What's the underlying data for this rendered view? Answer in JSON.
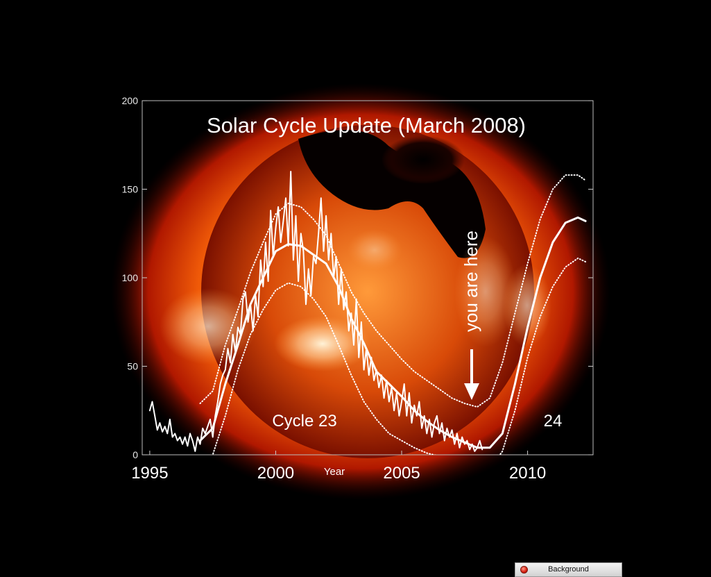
{
  "chart_data": {
    "type": "line",
    "title": "Solar Cycle Update (March 2008)",
    "xlabel": "Year",
    "ylabel": "",
    "xlim": [
      1995,
      2012.5
    ],
    "ylim": [
      0,
      200
    ],
    "x_ticks": [
      1995,
      2000,
      2005,
      2010
    ],
    "y_ticks": [
      0,
      50,
      100,
      150,
      200
    ],
    "annotations": {
      "you_are_here": "you are here",
      "cycle23": "Cycle 23",
      "cycle24": "24"
    },
    "series": [
      {
        "style": "monthly",
        "points": [
          [
            1995.0,
            25
          ],
          [
            1995.1,
            30
          ],
          [
            1995.2,
            22
          ],
          [
            1995.3,
            14
          ],
          [
            1995.4,
            18
          ],
          [
            1995.5,
            13
          ],
          [
            1995.6,
            16
          ],
          [
            1995.7,
            12
          ],
          [
            1995.8,
            20
          ],
          [
            1995.9,
            10
          ],
          [
            1996.0,
            12
          ],
          [
            1996.1,
            8
          ],
          [
            1996.2,
            10
          ],
          [
            1996.3,
            6
          ],
          [
            1996.4,
            10
          ],
          [
            1996.5,
            5
          ],
          [
            1996.6,
            12
          ],
          [
            1996.7,
            8
          ],
          [
            1996.8,
            2
          ],
          [
            1996.9,
            10
          ],
          [
            1997.0,
            6
          ],
          [
            1997.1,
            15
          ],
          [
            1997.2,
            12
          ],
          [
            1997.3,
            16
          ],
          [
            1997.4,
            20
          ],
          [
            1997.5,
            10
          ],
          [
            1997.6,
            22
          ],
          [
            1997.7,
            30
          ],
          [
            1997.8,
            40
          ],
          [
            1997.9,
            45
          ],
          [
            1998.0,
            48
          ],
          [
            1998.1,
            60
          ],
          [
            1998.2,
            52
          ],
          [
            1998.3,
            68
          ],
          [
            1998.4,
            58
          ],
          [
            1998.5,
            72
          ],
          [
            1998.6,
            68
          ],
          [
            1998.7,
            88
          ],
          [
            1998.8,
            92
          ],
          [
            1998.9,
            75
          ],
          [
            1999.0,
            85
          ],
          [
            1999.1,
            70
          ],
          [
            1999.2,
            90
          ],
          [
            1999.3,
            78
          ],
          [
            1999.4,
            110
          ],
          [
            1999.5,
            95
          ],
          [
            1999.6,
            120
          ],
          [
            1999.7,
            98
          ],
          [
            1999.8,
            138
          ],
          [
            1999.9,
            112
          ],
          [
            2000.0,
            128
          ],
          [
            2000.1,
            140
          ],
          [
            2000.2,
            120
          ],
          [
            2000.3,
            132
          ],
          [
            2000.4,
            145
          ],
          [
            2000.5,
            118
          ],
          [
            2000.6,
            160
          ],
          [
            2000.7,
            110
          ],
          [
            2000.8,
            135
          ],
          [
            2000.9,
            98
          ],
          [
            2001.0,
            125
          ],
          [
            2001.1,
            115
          ],
          [
            2001.2,
            85
          ],
          [
            2001.3,
            105
          ],
          [
            2001.4,
            90
          ],
          [
            2001.5,
            112
          ],
          [
            2001.6,
            108
          ],
          [
            2001.7,
            125
          ],
          [
            2001.8,
            145
          ],
          [
            2001.9,
            115
          ],
          [
            2002.0,
            135
          ],
          [
            2002.1,
            110
          ],
          [
            2002.2,
            125
          ],
          [
            2002.3,
            100
          ],
          [
            2002.4,
            112
          ],
          [
            2002.5,
            85
          ],
          [
            2002.6,
            105
          ],
          [
            2002.7,
            82
          ],
          [
            2002.8,
            92
          ],
          [
            2002.9,
            70
          ],
          [
            2003.0,
            80
          ],
          [
            2003.1,
            62
          ],
          [
            2003.2,
            88
          ],
          [
            2003.3,
            55
          ],
          [
            2003.4,
            75
          ],
          [
            2003.5,
            48
          ],
          [
            2003.6,
            60
          ],
          [
            2003.7,
            45
          ],
          [
            2003.8,
            55
          ],
          [
            2003.9,
            42
          ],
          [
            2004.0,
            48
          ],
          [
            2004.1,
            38
          ],
          [
            2004.2,
            45
          ],
          [
            2004.3,
            32
          ],
          [
            2004.4,
            42
          ],
          [
            2004.5,
            30
          ],
          [
            2004.6,
            38
          ],
          [
            2004.7,
            25
          ],
          [
            2004.8,
            35
          ],
          [
            2004.9,
            22
          ],
          [
            2005.0,
            30
          ],
          [
            2005.1,
            40
          ],
          [
            2005.2,
            22
          ],
          [
            2005.3,
            35
          ],
          [
            2005.4,
            18
          ],
          [
            2005.5,
            28
          ],
          [
            2005.6,
            22
          ],
          [
            2005.7,
            30
          ],
          [
            2005.8,
            15
          ],
          [
            2005.9,
            22
          ],
          [
            2006.0,
            12
          ],
          [
            2006.1,
            20
          ],
          [
            2006.2,
            10
          ],
          [
            2006.3,
            18
          ],
          [
            2006.4,
            22
          ],
          [
            2006.5,
            12
          ],
          [
            2006.6,
            18
          ],
          [
            2006.7,
            8
          ],
          [
            2006.8,
            15
          ],
          [
            2006.9,
            10
          ],
          [
            2007.0,
            14
          ],
          [
            2007.1,
            6
          ],
          [
            2007.2,
            12
          ],
          [
            2007.3,
            4
          ],
          [
            2007.4,
            10
          ],
          [
            2007.5,
            6
          ],
          [
            2007.6,
            8
          ],
          [
            2007.7,
            3
          ],
          [
            2007.8,
            6
          ],
          [
            2007.9,
            2
          ],
          [
            2008.0,
            4
          ],
          [
            2008.1,
            8
          ],
          [
            2008.2,
            3
          ]
        ]
      },
      {
        "style": "smoothed",
        "points": [
          [
            1997.0,
            8
          ],
          [
            1997.5,
            15
          ],
          [
            1998.0,
            40
          ],
          [
            1998.5,
            62
          ],
          [
            1999.0,
            85
          ],
          [
            1999.5,
            100
          ],
          [
            2000.0,
            115
          ],
          [
            2000.5,
            119
          ],
          [
            2001.0,
            118
          ],
          [
            2001.5,
            113
          ],
          [
            2002.0,
            108
          ],
          [
            2002.5,
            95
          ],
          [
            2003.0,
            77
          ],
          [
            2003.5,
            63
          ],
          [
            2004.0,
            47
          ],
          [
            2004.5,
            40
          ],
          [
            2005.0,
            33
          ],
          [
            2005.5,
            25
          ],
          [
            2006.0,
            19
          ],
          [
            2006.5,
            14
          ],
          [
            2007.0,
            10
          ],
          [
            2007.5,
            7
          ],
          [
            2008.0,
            4
          ]
        ]
      },
      {
        "style": "prediction",
        "points": [
          [
            2008.0,
            4
          ],
          [
            2008.5,
            4
          ],
          [
            2009.0,
            12
          ],
          [
            2009.5,
            40
          ],
          [
            2010.0,
            72
          ],
          [
            2010.5,
            100
          ],
          [
            2011.0,
            120
          ],
          [
            2011.5,
            131
          ],
          [
            2012.0,
            134
          ],
          [
            2012.3,
            132
          ]
        ]
      },
      {
        "style": "upper-bound",
        "points": [
          [
            1997.0,
            29
          ],
          [
            1997.5,
            36
          ],
          [
            1998.0,
            62
          ],
          [
            1998.5,
            82
          ],
          [
            1999.0,
            103
          ],
          [
            1999.5,
            120
          ],
          [
            2000.0,
            136
          ],
          [
            2000.5,
            142
          ],
          [
            2001.0,
            140
          ],
          [
            2001.5,
            133
          ],
          [
            2002.0,
            124
          ],
          [
            2002.5,
            108
          ],
          [
            2003.0,
            92
          ],
          [
            2003.5,
            80
          ],
          [
            2004.0,
            70
          ],
          [
            2004.5,
            62
          ],
          [
            2005.0,
            54
          ],
          [
            2005.5,
            47
          ],
          [
            2006.0,
            42
          ],
          [
            2006.5,
            37
          ],
          [
            2007.0,
            32
          ],
          [
            2007.5,
            29
          ],
          [
            2008.0,
            27
          ],
          [
            2008.5,
            32
          ],
          [
            2009.0,
            52
          ],
          [
            2009.5,
            80
          ],
          [
            2010.0,
            108
          ],
          [
            2010.5,
            133
          ],
          [
            2011.0,
            150
          ],
          [
            2011.5,
            158
          ],
          [
            2012.0,
            158
          ],
          [
            2012.3,
            155
          ]
        ]
      },
      {
        "style": "lower-bound",
        "points": [
          [
            1997.0,
            -15
          ],
          [
            1997.5,
            0
          ],
          [
            1998.0,
            22
          ],
          [
            1998.5,
            48
          ],
          [
            1999.0,
            68
          ],
          [
            1999.5,
            82
          ],
          [
            2000.0,
            93
          ],
          [
            2000.5,
            97
          ],
          [
            2001.0,
            95
          ],
          [
            2001.5,
            88
          ],
          [
            2002.0,
            78
          ],
          [
            2002.5,
            62
          ],
          [
            2003.0,
            45
          ],
          [
            2003.5,
            30
          ],
          [
            2004.0,
            20
          ],
          [
            2004.5,
            12
          ],
          [
            2005.0,
            8
          ],
          [
            2005.5,
            4
          ],
          [
            2006.0,
            1
          ],
          [
            2008.5,
            -8
          ],
          [
            2009.0,
            2
          ],
          [
            2009.5,
            25
          ],
          [
            2010.0,
            55
          ],
          [
            2010.5,
            78
          ],
          [
            2011.0,
            95
          ],
          [
            2011.5,
            106
          ],
          [
            2012.0,
            111
          ],
          [
            2012.3,
            109
          ]
        ]
      }
    ],
    "colors": {
      "background": "#000000",
      "line": "#ffffff",
      "sun_core": "#ff7a10",
      "sun_edge": "#a81600"
    }
  },
  "window": {
    "title": "Background"
  }
}
